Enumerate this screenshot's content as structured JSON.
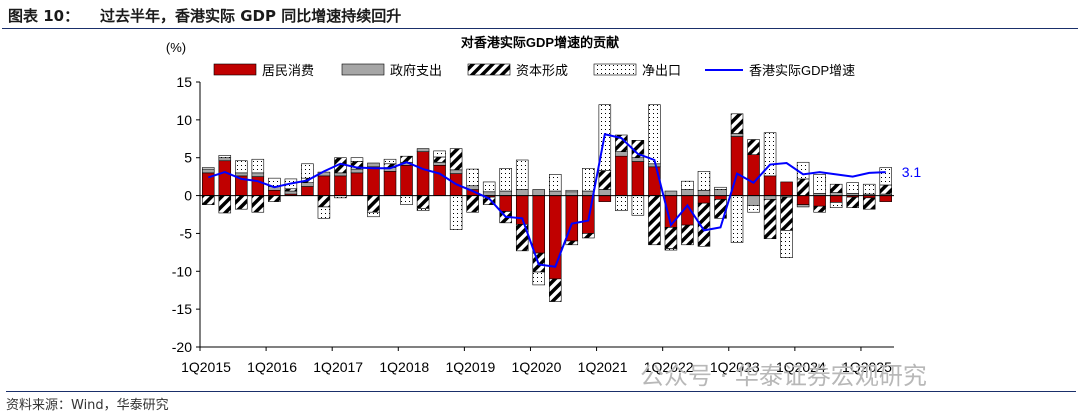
{
  "figure": {
    "number_label": "图表 10：",
    "caption": "过去半年，香港实际 GDP 同比增速持续回升",
    "source": "资料来源：Wind，华泰研究",
    "watermark": "公众号 · 华泰证券宏观研究"
  },
  "chart_data": {
    "type": "bar",
    "stacked": true,
    "title": "对香港实际GDP增速的贡献",
    "ylabel": "(%)",
    "xlabel": "",
    "ylim": [
      -20,
      15
    ],
    "yticks": [
      -20,
      -15,
      -10,
      -5,
      0,
      5,
      10,
      15
    ],
    "ytick_labels": [
      "-20",
      "-15",
      "-10",
      "-5",
      "0",
      "5",
      "10",
      "15"
    ],
    "grid": false,
    "legend_position": "top",
    "x_tick_labels": [
      "1Q2015",
      "1Q2016",
      "1Q2017",
      "1Q2018",
      "1Q2019",
      "1Q2020",
      "1Q2021",
      "1Q2022",
      "1Q2023",
      "1Q2024",
      "1Q2025"
    ],
    "categories": [
      "1Q2015",
      "2Q2015",
      "3Q2015",
      "4Q2015",
      "1Q2016",
      "2Q2016",
      "3Q2016",
      "4Q2016",
      "1Q2017",
      "2Q2017",
      "3Q2017",
      "4Q2017",
      "1Q2018",
      "2Q2018",
      "3Q2018",
      "4Q2018",
      "1Q2019",
      "2Q2019",
      "3Q2019",
      "4Q2019",
      "1Q2020",
      "2Q2020",
      "3Q2020",
      "4Q2020",
      "1Q2021",
      "2Q2021",
      "3Q2021",
      "4Q2021",
      "1Q2022",
      "2Q2022",
      "3Q2022",
      "4Q2022",
      "1Q2023",
      "2Q2023",
      "3Q2023",
      "4Q2023",
      "1Q2024",
      "2Q2024",
      "3Q2024",
      "4Q2024",
      "1Q2025",
      "2Q2025"
    ],
    "series": [
      {
        "name": "居民消费",
        "type": "bar",
        "color": "#c00000",
        "values": [
          3.0,
          4.6,
          2.6,
          2.5,
          0.7,
          0.2,
          1.2,
          2.6,
          2.6,
          3.0,
          3.8,
          3.2,
          4.0,
          5.8,
          4.0,
          2.9,
          0.8,
          -0.2,
          -2.1,
          -3.8,
          -7.6,
          -11.0,
          -6.0,
          -5.0,
          -0.8,
          5.2,
          4.5,
          3.8,
          -4.2,
          -3.9,
          -1.0,
          -0.5,
          7.8,
          5.4,
          2.6,
          1.8,
          -1.2,
          -1.4,
          -0.9,
          -0.2,
          -0.3,
          -0.8
        ]
      },
      {
        "name": "政府支出",
        "type": "bar",
        "color": "#a6a6a6",
        "values": [
          0.5,
          0.4,
          0.4,
          0.5,
          0.5,
          0.4,
          0.5,
          0.5,
          0.4,
          0.5,
          0.5,
          0.5,
          0.4,
          0.4,
          0.4,
          0.5,
          0.5,
          0.5,
          0.6,
          0.8,
          0.8,
          0.6,
          0.5,
          0.6,
          0.8,
          0.6,
          0.5,
          0.4,
          0.6,
          0.8,
          0.7,
          0.8,
          0.4,
          -1.3,
          -0.5,
          -0.2,
          -0.3,
          0.3,
          0.4,
          0.3,
          0.2,
          0.2
        ]
      },
      {
        "name": "资本形成",
        "type": "bar",
        "color": "#000000",
        "values": [
          -1.2,
          -2.3,
          -1.8,
          -2.2,
          -0.8,
          0.3,
          0.6,
          -1.5,
          2.0,
          1.0,
          -2.2,
          0.5,
          0.8,
          -1.7,
          0.7,
          2.8,
          -2.2,
          -1.0,
          -1.5,
          -3.5,
          -2.5,
          -3.0,
          -0.5,
          -0.6,
          2.5,
          2.2,
          2.3,
          -6.5,
          -2.8,
          -2.6,
          -5.7,
          -2.5,
          2.6,
          2.0,
          -5.2,
          -4.4,
          2.2,
          -0.8,
          1.1,
          -1.4,
          -1.5,
          1.2
        ]
      },
      {
        "name": "净出口",
        "type": "bar",
        "color": "#ffffff",
        "values": [
          0.2,
          0.3,
          1.6,
          1.8,
          1.1,
          1.3,
          1.9,
          -1.5,
          -0.3,
          0.5,
          -0.6,
          0.6,
          -1.2,
          -0.3,
          0.8,
          -4.5,
          2.2,
          1.3,
          3.0,
          3.9,
          -1.7,
          2.2,
          0.2,
          3.0,
          8.7,
          -2.0,
          -2.6,
          7.8,
          -0.2,
          1.1,
          2.5,
          0.3,
          -6.2,
          -0.9,
          5.7,
          -3.6,
          2.2,
          2.5,
          -0.7,
          1.4,
          1.3,
          2.3
        ]
      },
      {
        "name": "香港实际GDP增速",
        "type": "line",
        "color": "#0000ff",
        "values": [
          2.4,
          3.1,
          2.2,
          1.9,
          1.1,
          1.6,
          2.0,
          3.2,
          4.2,
          3.7,
          3.6,
          3.6,
          4.4,
          3.5,
          2.9,
          1.5,
          0.6,
          -0.4,
          -2.8,
          -3.0,
          -9.1,
          -9.4,
          -3.7,
          -3.3,
          8.1,
          7.6,
          5.5,
          4.7,
          -3.9,
          -1.3,
          -4.6,
          -4.2,
          2.9,
          1.7,
          4.1,
          4.3,
          2.8,
          3.1,
          2.8,
          2.5,
          3.0,
          3.1
        ]
      }
    ],
    "annotations": [
      {
        "series": "香港实际GDP增速",
        "label": "3.1"
      }
    ]
  }
}
